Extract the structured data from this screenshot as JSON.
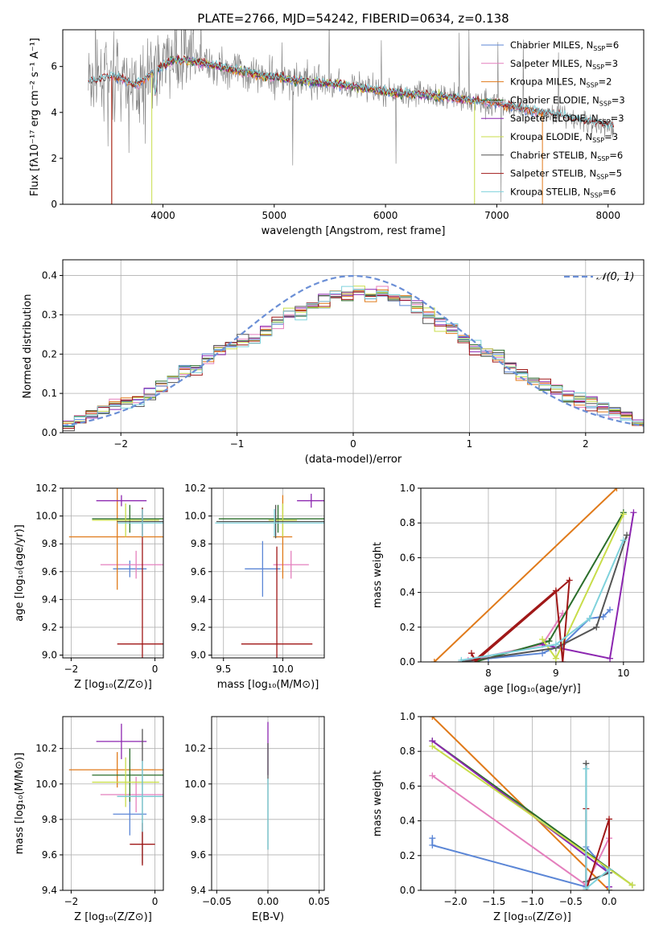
{
  "colors": {
    "chabrier_miles": "#5b86d6",
    "salpeter_miles": "#e47fbd",
    "kroupa_miles": "#e07a1a",
    "chabrier_elodie": "#2b6e2b",
    "salpeter_elodie": "#8c26b0",
    "kroupa_elodie": "#c8dd4a",
    "chabrier_stelib": "#555555",
    "salpeter_stelib": "#a01818",
    "kroupa_stelib": "#7fd2dc",
    "data_grey": "#7f7f7f",
    "gauss": "#6b8fd6"
  },
  "chart_data": [
    {
      "type": "line",
      "title": "PLATE=2766, MJD=54242, FIBERID=0634, z=0.138",
      "xlabel": "wavelength [Angstrom, rest frame]",
      "ylabel": "Flux [fλ10⁻¹⁷ erg cm⁻² s⁻¹ A⁻¹]",
      "xlim": [
        3100,
        8320
      ],
      "ylim": [
        0,
        7.6
      ],
      "xticks": [
        "4000",
        "5000",
        "6000",
        "7000",
        "8000"
      ],
      "yticks": [
        "0",
        "2",
        "4",
        "6"
      ],
      "legend_position": "right",
      "legend": [
        {
          "name": "Chabrier MILES, N",
          "sub": "SSP",
          "n": "=6",
          "color": "#5b86d6"
        },
        {
          "name": "Salpeter MILES, N",
          "sub": "SSP",
          "n": "=3",
          "color": "#e47fbd"
        },
        {
          "name": "Kroupa MILES, N",
          "sub": "SSP",
          "n": "=2",
          "color": "#e07a1a"
        },
        {
          "name": "Chabrier ELODIE, N",
          "sub": "SSP",
          "n": "=3",
          "color": "#2b6e2b"
        },
        {
          "name": "Salpeter ELODIE, N",
          "sub": "SSP",
          "n": "=3",
          "color": "#8c26b0"
        },
        {
          "name": "Kroupa ELODIE, N",
          "sub": "SSP",
          "n": "=3",
          "color": "#c8dd4a"
        },
        {
          "name": "Chabrier STELIB, N",
          "sub": "SSP",
          "n": "=6",
          "color": "#555555"
        },
        {
          "name": "Salpeter STELIB, N",
          "sub": "SSP",
          "n": "=5",
          "color": "#a01818"
        },
        {
          "name": "Kroupa STELIB, N",
          "sub": "SSP",
          "n": "=6",
          "color": "#7fd2dc"
        }
      ],
      "model_continuum": {
        "x": [
          3330,
          3450,
          3550,
          3650,
          3750,
          3850,
          3950,
          4100,
          4300,
          4500,
          4700,
          4900,
          5200,
          5600,
          6000,
          6500,
          7000,
          7400,
          7800,
          8050
        ],
        "y": [
          5.3,
          5.5,
          5.6,
          5.4,
          5.2,
          5.5,
          5.9,
          6.3,
          6.2,
          6.0,
          5.8,
          5.6,
          5.4,
          5.2,
          4.9,
          4.7,
          4.4,
          4.0,
          3.6,
          3.4
        ]
      }
    },
    {
      "type": "bar",
      "xlabel": "(data-model)/error",
      "ylabel": "Normed distribution",
      "xlim": [
        -2.5,
        2.5
      ],
      "ylim": [
        0,
        0.44
      ],
      "xticks": [
        "−2",
        "−1",
        "0",
        "1",
        "2"
      ],
      "yticks": [
        "0.0",
        "0.1",
        "0.2",
        "0.3",
        "0.4"
      ],
      "legend": [
        "𝒩(0, 1)"
      ],
      "legend_position": "top-right",
      "bin_width": 0.1,
      "hist_center": [
        0.02,
        0.03,
        0.05,
        0.06,
        0.07,
        0.08,
        0.08,
        0.1,
        0.12,
        0.14,
        0.16,
        0.17,
        0.19,
        0.21,
        0.22,
        0.23,
        0.24,
        0.26,
        0.28,
        0.3,
        0.31,
        0.32,
        0.34,
        0.35,
        0.35,
        0.36,
        0.35,
        0.36,
        0.35,
        0.34,
        0.32,
        0.3,
        0.28,
        0.26,
        0.24,
        0.22,
        0.2,
        0.19,
        0.17,
        0.15,
        0.13,
        0.12,
        0.11,
        0.09,
        0.08,
        0.07,
        0.06,
        0.05,
        0.04,
        0.03
      ]
    },
    {
      "type": "scatter",
      "xlabel": "Z [log₁₀(Z/Z⊙)]",
      "ylabel": "age  [log₁₀(age/yr)]",
      "xlim": [
        -2.2,
        0.2
      ],
      "ylim": [
        8.98,
        10.2
      ],
      "xticks": [
        "−2",
        "0"
      ],
      "yticks": [
        "9.0",
        "9.2",
        "9.4",
        "9.6",
        "9.8",
        "10.0",
        "10.2"
      ],
      "points": [
        {
          "x": -0.6,
          "y": 9.62,
          "xerr": 0.4,
          "yerr": 0.06,
          "color": "#5b86d6"
        },
        {
          "x": -0.45,
          "y": 9.65,
          "xerr": 0.85,
          "yerr": 0.1,
          "color": "#e47fbd"
        },
        {
          "x": -0.9,
          "y": 9.85,
          "xerr": 1.15,
          "yerr": 0.38,
          "color": "#e07a1a"
        },
        {
          "x": -0.6,
          "y": 9.98,
          "xerr": 0.9,
          "yerr": 0.1,
          "color": "#2b6e2b"
        },
        {
          "x": -0.8,
          "y": 10.11,
          "xerr": 0.6,
          "yerr": 0.04,
          "color": "#8c26b0"
        },
        {
          "x": -0.7,
          "y": 9.97,
          "xerr": 0.8,
          "yerr": 0.12,
          "color": "#c8dd4a"
        },
        {
          "x": -0.3,
          "y": 9.96,
          "xerr": 0.6,
          "yerr": 0.1,
          "color": "#555555"
        },
        {
          "x": -0.3,
          "y": 9.08,
          "xerr": 0.6,
          "yerr": 0.98,
          "color": "#a01818"
        },
        {
          "x": -0.3,
          "y": 9.95,
          "xerr": 0.6,
          "yerr": 0.1,
          "color": "#7fd2dc"
        }
      ]
    },
    {
      "type": "scatter",
      "xlabel": "mass [log₁₀(M/M⊙)]",
      "xlim": [
        9.4,
        10.35
      ],
      "ylim": [
        8.98,
        10.2
      ],
      "xticks": [
        "9.5",
        "10.0"
      ],
      "yticks": [
        "9.0",
        "9.2",
        "9.4",
        "9.6",
        "9.8",
        "10.0",
        "10.2"
      ],
      "points": [
        {
          "x": 9.83,
          "y": 9.62,
          "xerr": 0.15,
          "yerr": 0.2,
          "color": "#5b86d6"
        },
        {
          "x": 10.07,
          "y": 9.65,
          "xerr": 0.15,
          "yerr": 0.1,
          "color": "#e47fbd"
        },
        {
          "x": 10.0,
          "y": 9.85,
          "xerr": 0.08,
          "yerr": 0.3,
          "color": "#e07a1a"
        },
        {
          "x": 9.96,
          "y": 9.98,
          "xerr": 0.5,
          "yerr": 0.1,
          "color": "#2b6e2b"
        },
        {
          "x": 10.24,
          "y": 10.11,
          "xerr": 0.12,
          "yerr": 0.05,
          "color": "#8c26b0"
        },
        {
          "x": 10.0,
          "y": 9.97,
          "xerr": 0.12,
          "yerr": 0.12,
          "color": "#c8dd4a"
        },
        {
          "x": 9.94,
          "y": 9.96,
          "xerr": 0.5,
          "yerr": 0.12,
          "color": "#555555"
        },
        {
          "x": 9.95,
          "y": 9.08,
          "xerr": 0.3,
          "yerr": 0.7,
          "color": "#a01818"
        },
        {
          "x": 9.93,
          "y": 9.95,
          "xerr": 0.5,
          "yerr": 0.1,
          "color": "#7fd2dc"
        }
      ]
    },
    {
      "type": "line",
      "xlabel": "age  [log₁₀(age/yr)]",
      "ylabel": "mass weight",
      "xlim": [
        7.0,
        10.3
      ],
      "ylim": [
        0,
        1.0
      ],
      "xticks": [
        "8",
        "9",
        "10"
      ],
      "yticks": [
        "0.0",
        "0.2",
        "0.4",
        "0.6",
        "0.8",
        "1.0"
      ],
      "series": [
        {
          "color": "#5b86d6",
          "x": [
            7.6,
            8.0,
            8.8,
            9.1,
            9.5,
            9.7,
            9.8
          ],
          "y": [
            0.0,
            0.02,
            0.05,
            0.1,
            0.25,
            0.26,
            0.3
          ]
        },
        {
          "color": "#e47fbd",
          "x": [
            7.7,
            8.8,
            9.1
          ],
          "y": [
            0.01,
            0.1,
            0.28
          ]
        },
        {
          "color": "#e07a1a",
          "x": [
            7.2,
            9.9
          ],
          "y": [
            0.0,
            1.0
          ]
        },
        {
          "color": "#2b6e2b",
          "x": [
            7.8,
            8.9,
            10.0
          ],
          "y": [
            0.0,
            0.12,
            0.86
          ]
        },
        {
          "color": "#8c26b0",
          "x": [
            8.8,
            9.8,
            10.15
          ],
          "y": [
            0.1,
            0.02,
            0.86
          ]
        },
        {
          "color": "#c8dd4a",
          "x": [
            8.8,
            9.0,
            10.0
          ],
          "y": [
            0.13,
            0.02,
            0.85
          ]
        },
        {
          "color": "#555555",
          "x": [
            7.6,
            9.0,
            9.6,
            10.05
          ],
          "y": [
            0.0,
            0.08,
            0.2,
            0.73
          ]
        },
        {
          "color": "#a01818",
          "x": [
            7.75,
            7.8,
            9.0,
            9.1,
            9.2,
            7.8
          ],
          "y": [
            0.05,
            0.01,
            0.41,
            0.0,
            0.47,
            0.0
          ]
        },
        {
          "color": "#7fd2dc",
          "x": [
            7.6,
            9.0,
            9.5,
            10.0
          ],
          "y": [
            0.01,
            0.1,
            0.25,
            0.7
          ]
        }
      ]
    },
    {
      "type": "scatter",
      "xlabel": "Z [log₁₀(Z/Z⊙)]",
      "ylabel": "mass [log₁₀(M/M⊙)]",
      "xlim": [
        -2.2,
        0.2
      ],
      "ylim": [
        9.4,
        10.38
      ],
      "xticks": [
        "−2",
        "0"
      ],
      "yticks": [
        "9.4",
        "9.6",
        "9.8",
        "10.0",
        "10.2"
      ],
      "points": [
        {
          "x": -0.6,
          "y": 9.83,
          "xerr": 0.4,
          "yerr": 0.12,
          "color": "#5b86d6"
        },
        {
          "x": -0.45,
          "y": 9.94,
          "xerr": 0.85,
          "yerr": 0.1,
          "color": "#e47fbd"
        },
        {
          "x": -0.9,
          "y": 10.08,
          "xerr": 1.15,
          "yerr": 0.1,
          "color": "#e07a1a"
        },
        {
          "x": -0.6,
          "y": 10.05,
          "xerr": 0.9,
          "yerr": 0.15,
          "color": "#2b6e2b"
        },
        {
          "x": -0.8,
          "y": 10.24,
          "xerr": 0.6,
          "yerr": 0.1,
          "color": "#8c26b0"
        },
        {
          "x": -0.7,
          "y": 10.01,
          "xerr": 0.8,
          "yerr": 0.14,
          "color": "#c8dd4a"
        },
        {
          "x": -0.3,
          "y": 9.93,
          "xerr": 0.6,
          "yerr": 0.38,
          "color": "#555555"
        },
        {
          "x": -0.3,
          "y": 9.66,
          "xerr": 0.3,
          "yerr": 0.12,
          "color": "#a01818"
        },
        {
          "x": -0.3,
          "y": 9.93,
          "xerr": 0.6,
          "yerr": 0.2,
          "color": "#7fd2dc"
        }
      ]
    },
    {
      "type": "scatter",
      "xlabel": "E(B-V)",
      "xlim": [
        -0.055,
        0.055
      ],
      "ylim": [
        9.4,
        10.38
      ],
      "xticks": [
        "−0.05",
        "0.00",
        "0.05"
      ],
      "yticks": [
        "9.4",
        "9.6",
        "9.8",
        "10.0",
        "10.2"
      ],
      "points": [
        {
          "x": 0.0,
          "y": 10.2,
          "xerr": 0.0,
          "yerr": 0.15,
          "color": "#8c26b0"
        },
        {
          "x": 0.0,
          "y": 9.93,
          "xerr": 0.0,
          "yerr": 0.3,
          "color": "#555555"
        },
        {
          "x": 0.0,
          "y": 9.83,
          "xerr": 0.0,
          "yerr": 0.2,
          "color": "#7fd2dc"
        }
      ]
    },
    {
      "type": "line",
      "xlabel": "Z [log₁₀(Z/Z⊙)]",
      "ylabel": "mass weight",
      "xlim": [
        -2.45,
        0.45
      ],
      "ylim": [
        0,
        1.0
      ],
      "xticks": [
        "−2.0",
        "−1.5",
        "−1.0",
        "−0.5",
        "0.0"
      ],
      "yticks": [
        "0.0",
        "0.2",
        "0.4",
        "0.6",
        "0.8",
        "1.0"
      ],
      "series": [
        {
          "color": "#5b86d6",
          "x": [
            -2.3,
            -2.3,
            -0.3,
            -0.3,
            0.0
          ],
          "y": [
            0.3,
            0.26,
            0.02,
            0.25,
            0.1
          ]
        },
        {
          "color": "#e47fbd",
          "x": [
            -2.3,
            -0.3,
            0.0
          ],
          "y": [
            0.66,
            0.03,
            0.3
          ]
        },
        {
          "color": "#e07a1a",
          "x": [
            -2.3,
            0.0
          ],
          "y": [
            1.0,
            0.0
          ]
        },
        {
          "color": "#2b6e2b",
          "x": [
            -2.3,
            0.3
          ],
          "y": [
            0.86,
            0.03
          ]
        },
        {
          "color": "#8c26b0",
          "x": [
            -2.3,
            0.0,
            0.0
          ],
          "y": [
            0.86,
            0.1,
            0.02
          ]
        },
        {
          "color": "#c8dd4a",
          "x": [
            -2.3,
            0.3
          ],
          "y": [
            0.83,
            0.03
          ]
        },
        {
          "color": "#555555",
          "x": [
            -0.3,
            -0.3,
            0.0,
            0.0
          ],
          "y": [
            0.73,
            0.05,
            0.1,
            0.0
          ]
        },
        {
          "color": "#a01818",
          "x": [
            -0.3,
            -0.3,
            0.0,
            0.0
          ],
          "y": [
            0.47,
            0.0,
            0.41,
            0.0
          ]
        },
        {
          "color": "#7fd2dc",
          "x": [
            -0.3,
            -0.3,
            0.0,
            0.0
          ],
          "y": [
            0.7,
            0.01,
            0.12,
            0.0
          ]
        }
      ]
    }
  ]
}
